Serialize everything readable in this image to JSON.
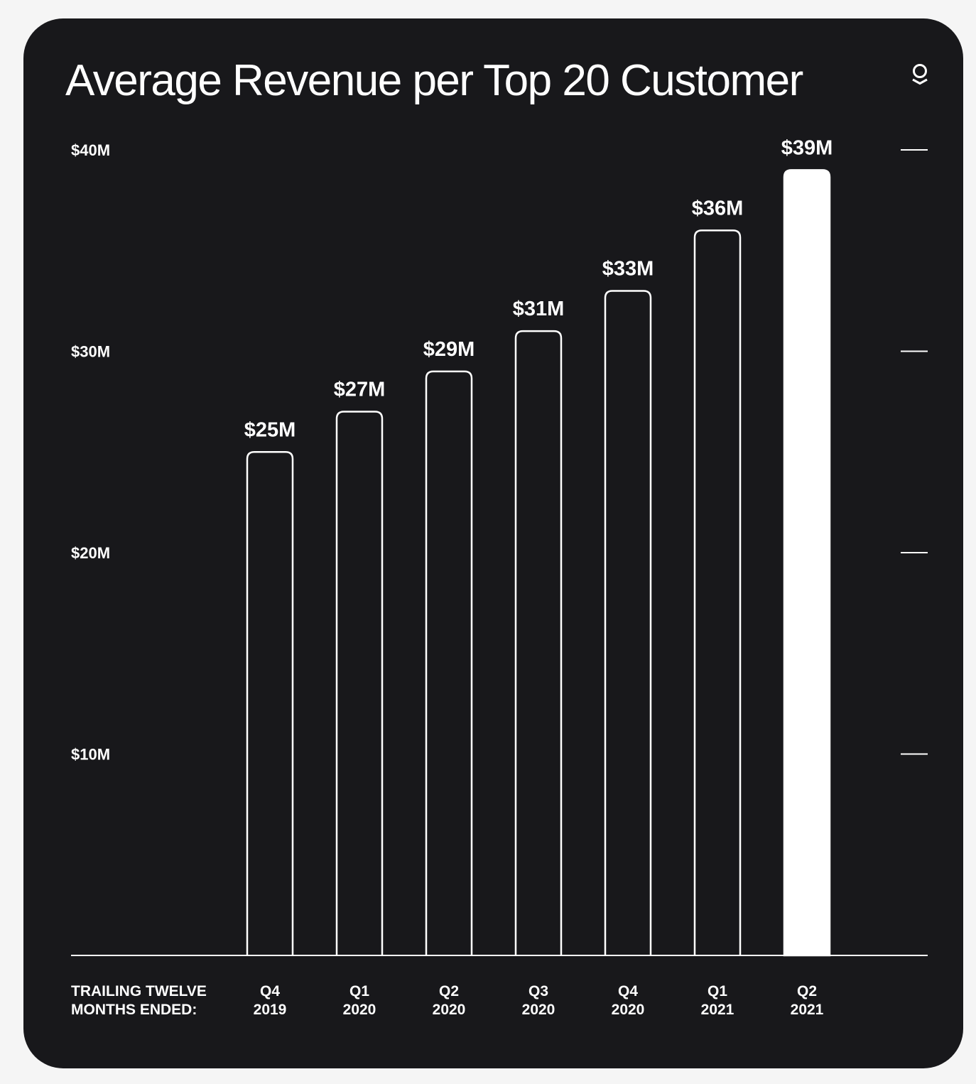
{
  "colors": {
    "page_background": "#f5f5f5",
    "card_background": "#18181b",
    "foreground": "#ffffff",
    "highlight_bar": "#ffffff"
  },
  "header": {
    "title": "Average Revenue per Top 20 Customer",
    "logo_icon": "palantir-logo-icon"
  },
  "chart_data": {
    "type": "bar",
    "title": "Average Revenue per Top 20 Customer",
    "xlabel": [
      "TRAILING TWELVE",
      "MONTHS ENDED:"
    ],
    "ylabel": "",
    "categories": [
      [
        "Q4",
        "2019"
      ],
      [
        "Q1",
        "2020"
      ],
      [
        "Q2",
        "2020"
      ],
      [
        "Q3",
        "2020"
      ],
      [
        "Q4",
        "2020"
      ],
      [
        "Q1",
        "2021"
      ],
      [
        "Q2",
        "2021"
      ]
    ],
    "values": [
      25,
      27,
      29,
      31,
      33,
      36,
      39
    ],
    "value_labels": [
      "$25M",
      "$27M",
      "$29M",
      "$31M",
      "$33M",
      "$36M",
      "$39M"
    ],
    "highlighted_index": 6,
    "bar_style": "outlined, last bar filled",
    "ylim": [
      0,
      40
    ],
    "yticks": [
      {
        "value": 10,
        "label": "$10M"
      },
      {
        "value": 20,
        "label": "$20M"
      },
      {
        "value": 30,
        "label": "$30M"
      },
      {
        "value": 40,
        "label": "$40M"
      }
    ],
    "grid": false,
    "legend": "none"
  }
}
